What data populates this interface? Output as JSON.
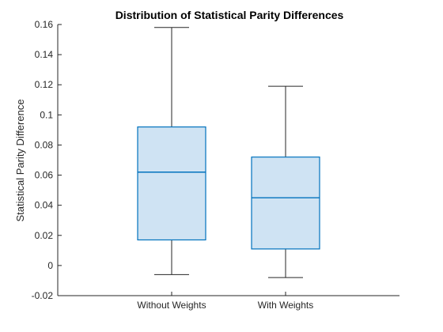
{
  "chart_data": {
    "type": "boxplot",
    "title": "Distribution of Statistical Parity Differences",
    "xlabel": "",
    "ylabel": "Statistical Parity Difference",
    "ylim": [
      -0.02,
      0.16
    ],
    "yticks": [
      -0.02,
      0,
      0.02,
      0.04,
      0.06,
      0.08,
      0.1,
      0.12,
      0.14,
      0.16
    ],
    "ytick_labels": [
      "-0.02",
      "0",
      "0.02",
      "0.04",
      "0.06",
      "0.08",
      "0.1",
      "0.12",
      "0.14",
      "0.16"
    ],
    "grid": false,
    "categories": [
      "Without Weights",
      "With Weights"
    ],
    "boxes": [
      {
        "category": "Without Weights",
        "whisker_low": -0.006,
        "q1": 0.017,
        "median": 0.062,
        "q3": 0.092,
        "whisker_high": 0.158
      },
      {
        "category": "With Weights",
        "whisker_low": -0.008,
        "q1": 0.011,
        "median": 0.045,
        "q3": 0.072,
        "whisker_high": 0.119
      }
    ],
    "colors": {
      "box_edge": "#0072BD",
      "box_fill": "#CFE3F3",
      "whisker": "#262626",
      "axis": "#262626"
    }
  }
}
